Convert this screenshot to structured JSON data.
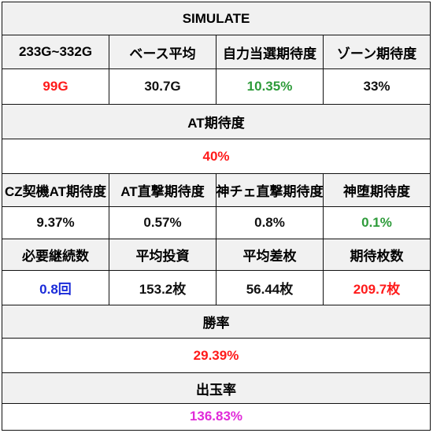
{
  "title": "SIMULATE",
  "table1": {
    "headers": [
      "233G~332G",
      "ベース平均",
      "自力当選期待度",
      "ゾーン期待度"
    ],
    "values": [
      {
        "text": "99G",
        "color": "#ff1a1a"
      },
      {
        "text": "30.7G",
        "color": "#111111"
      },
      {
        "text": "10.35%",
        "color": "#2e9b3a"
      },
      {
        "text": "33%",
        "color": "#111111"
      }
    ]
  },
  "at_expectation": {
    "label": "AT期待度",
    "value": "40%",
    "color": "#ff1a1a"
  },
  "table2": {
    "headers": [
      "CZ契機AT期待度",
      "AT直撃期待度",
      "神チェ直撃期待度",
      "神堕期待度"
    ],
    "values": [
      {
        "text": "9.37%",
        "color": "#111111"
      },
      {
        "text": "0.57%",
        "color": "#111111"
      },
      {
        "text": "0.8%",
        "color": "#111111"
      },
      {
        "text": "0.1%",
        "color": "#2e9b3a"
      }
    ]
  },
  "table3": {
    "headers": [
      "必要継続数",
      "平均投資",
      "平均差枚",
      "期待枚数"
    ],
    "values": [
      {
        "text": "0.8回",
        "color": "#1a2bd9"
      },
      {
        "text": "153.2枚",
        "color": "#111111"
      },
      {
        "text": "56.44枚",
        "color": "#111111"
      },
      {
        "text": "209.7枚",
        "color": "#ff1a1a"
      }
    ]
  },
  "win_rate": {
    "label": "勝率",
    "value": "29.39%",
    "color": "#ff1a1a"
  },
  "payout_rate": {
    "label": "出玉率",
    "value": "136.83%",
    "color": "#e02ad9"
  }
}
